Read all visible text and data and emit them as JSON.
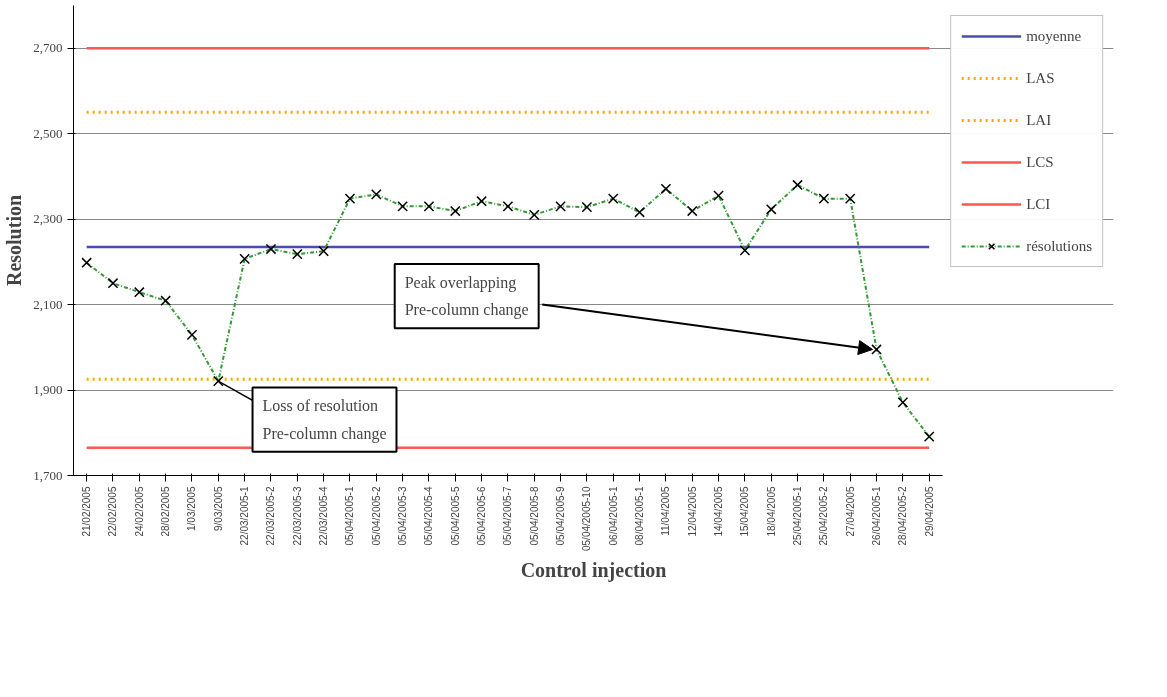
{
  "chart_data": {
    "type": "line",
    "xlabel": "Control injection",
    "ylabel": "Resolution",
    "categories": [
      "21/02/2005",
      "22/02/2005",
      "24/02/2005",
      "28/02/2005",
      "1/03/2005",
      "9/03/2005",
      "22/03/2005-1",
      "22/03/2005-2",
      "22/03/2005-3",
      "22/03/2005-4",
      "05/04/2005-1",
      "05/04/2005-2",
      "05/04/2005-3",
      "05/04/2005-4",
      "05/04/2005-5",
      "05/04/2005-6",
      "05/04/2005-7",
      "05/04/2005-8",
      "05/04/2005-9",
      "05/04/2005-10",
      "06/04/2005-1",
      "08/04/2005-1",
      "11/04/2005",
      "12/04/2005",
      "14/04/2005",
      "15/04/2005",
      "18/04/2005",
      "25/04/2005-1",
      "25/04/2005-2",
      "27/04/2005",
      "26/04/2005-1",
      "28/04/2005-2",
      "29/04/2005"
    ],
    "series": [
      {
        "name": "résolutions",
        "color": "#339933",
        "marker": "cross",
        "line_style": "dashed",
        "values": [
          2198,
          2150,
          2129,
          2109,
          2029,
          1921,
          2207,
          2230,
          2218,
          2225,
          2348,
          2358,
          2330,
          2330,
          2319,
          2342,
          2330,
          2310,
          2330,
          2328,
          2348,
          2316,
          2371,
          2319,
          2355,
          2227,
          2323,
          2380,
          2348,
          2348,
          1995,
          1871,
          1791
        ]
      }
    ],
    "ref_lines": [
      {
        "axis": "y",
        "value": 2235,
        "label": "moyenne",
        "color": "#4b4bb0",
        "line_style": "solid"
      },
      {
        "axis": "y",
        "value": 2550,
        "label": "LAS",
        "color": "#ffa500",
        "line_style": "dotted"
      },
      {
        "axis": "y",
        "value": 1925,
        "label": "LAI",
        "color": "#ffa500",
        "line_style": "dotted"
      },
      {
        "axis": "y",
        "value": 2700,
        "label": "LCS",
        "color": "#ff5555",
        "line_style": "solid"
      },
      {
        "axis": "y",
        "value": 1765,
        "label": "LCI",
        "color": "#ff5555",
        "line_style": "solid"
      }
    ],
    "annotations": [
      {
        "text": "Peak overlapping\nPre-column change",
        "x": "26/04/2005-1",
        "y": 1995
      },
      {
        "text": "Loss of resolution\nPre-column change",
        "x": "9/03/2005",
        "y": 1921
      }
    ],
    "ylim": [
      1700,
      2800
    ],
    "yticks": [
      {
        "value": 1700,
        "label": "1,700"
      },
      {
        "value": 1900,
        "label": "1,900"
      },
      {
        "value": 2100,
        "label": "2,100"
      },
      {
        "value": 2300,
        "label": "2,300"
      },
      {
        "value": 2500,
        "label": "2,500"
      },
      {
        "value": 2700,
        "label": "2,700"
      }
    ],
    "grid": "y",
    "legend": "right"
  }
}
